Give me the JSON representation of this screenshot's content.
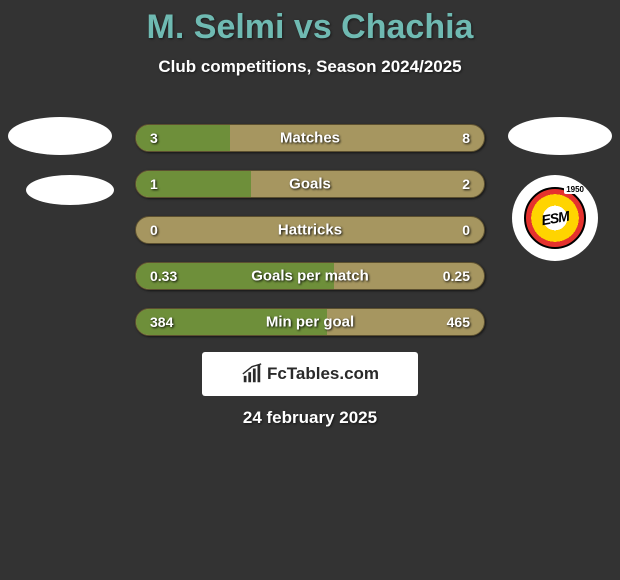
{
  "page": {
    "background_color": "#333333",
    "text_color": "#ffffff",
    "title_color": "#6fbab2"
  },
  "title": "M. Selmi vs Chachia",
  "subtitle": "Club competitions, Season 2024/2025",
  "date": "24 february 2025",
  "branding": "FcTables.com",
  "colors": {
    "bar_track": "#a69660",
    "bar_fill": "#6e8f3a",
    "bar_border": "#5c5030"
  },
  "bars": [
    {
      "label": "Matches",
      "left": "3",
      "right": "8",
      "fill_pct": 27
    },
    {
      "label": "Goals",
      "left": "1",
      "right": "2",
      "fill_pct": 33
    },
    {
      "label": "Hattricks",
      "left": "0",
      "right": "0",
      "fill_pct": 0
    },
    {
      "label": "Goals per match",
      "left": "0.33",
      "right": "0.25",
      "fill_pct": 57
    },
    {
      "label": "Min per goal",
      "left": "384",
      "right": "465",
      "fill_pct": 55
    }
  ]
}
